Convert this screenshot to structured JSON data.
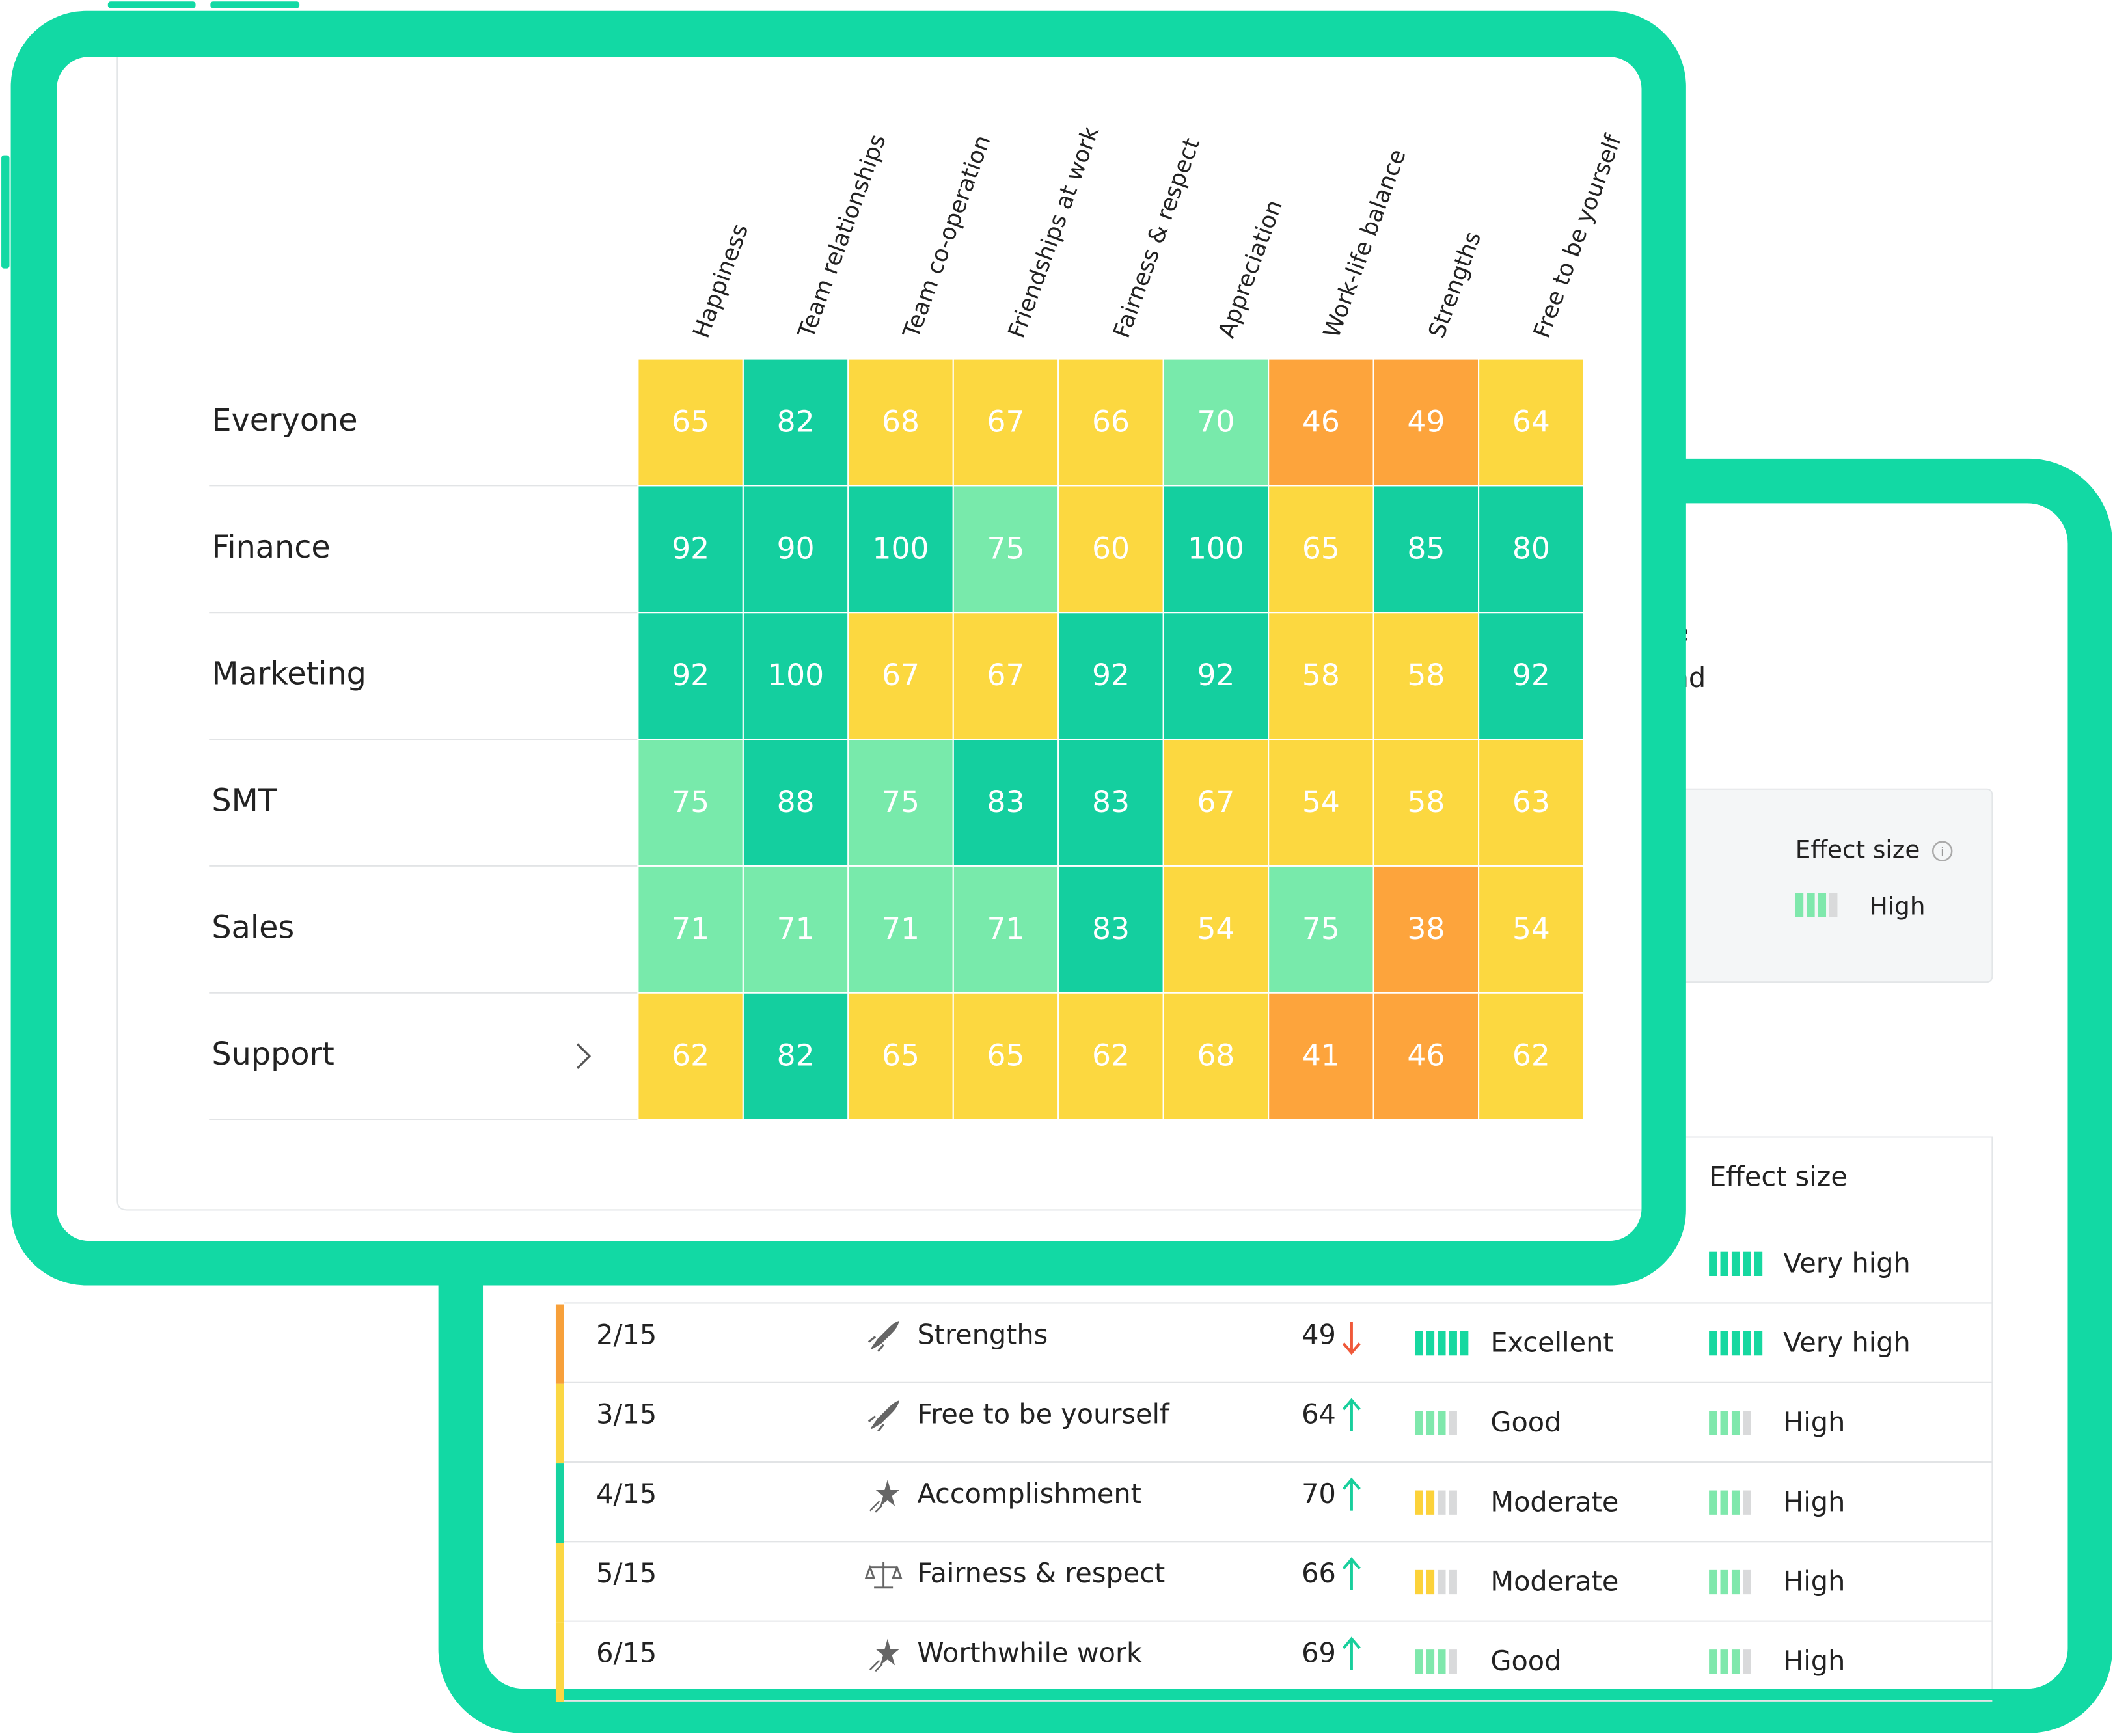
{
  "heatmap": {
    "columns": [
      "Happiness",
      "Team relationships",
      "Team co-operation",
      "Friendships at work",
      "Fairness & respect",
      "Appreciation",
      "Work-life balance",
      "Strengths",
      "Free to be yourself"
    ],
    "rows": [
      {
        "label": "Everyone",
        "values": [
          65,
          82,
          68,
          67,
          66,
          70,
          46,
          49,
          64
        ]
      },
      {
        "label": "Finance",
        "values": [
          92,
          90,
          100,
          75,
          60,
          100,
          65,
          85,
          80
        ]
      },
      {
        "label": "Marketing",
        "values": [
          92,
          100,
          67,
          67,
          92,
          92,
          58,
          58,
          92
        ]
      },
      {
        "label": "SMT",
        "values": [
          75,
          88,
          75,
          83,
          83,
          67,
          54,
          58,
          63
        ]
      },
      {
        "label": "Sales",
        "values": [
          71,
          71,
          71,
          71,
          83,
          54,
          75,
          38,
          54
        ]
      },
      {
        "label": "Support",
        "values": [
          62,
          82,
          65,
          65,
          62,
          68,
          41,
          46,
          62
        ]
      }
    ]
  },
  "background_panel": {
    "text_fragments": [
      "be",
      "and"
    ],
    "summary": {
      "label": "Effect size",
      "value": "High"
    },
    "table": {
      "header": "Effect size",
      "rows": [
        {
          "effect_size": "Very high"
        },
        {
          "rank": "2/15",
          "name": "Strengths",
          "score": 49,
          "trend": "down",
          "rating": "Excellent",
          "effect_size": "Very high",
          "color": "#f7a03a"
        },
        {
          "rank": "3/15",
          "name": "Free to be yourself",
          "score": 64,
          "trend": "up",
          "rating": "Good",
          "effect_size": "High",
          "color": "#fbd743"
        },
        {
          "rank": "4/15",
          "name": "Accomplishment",
          "score": 70,
          "trend": "up",
          "rating": "Moderate",
          "effect_size": "High",
          "color": "#16d3a0"
        },
        {
          "rank": "5/15",
          "name": "Fairness & respect",
          "score": 66,
          "trend": "up",
          "rating": "Moderate",
          "effect_size": "High",
          "color": "#fbd743"
        },
        {
          "rank": "6/15",
          "name": "Worthwhile work",
          "score": 69,
          "trend": "up",
          "rating": "Good",
          "effect_size": "High",
          "color": "#fbd743"
        }
      ]
    }
  }
}
